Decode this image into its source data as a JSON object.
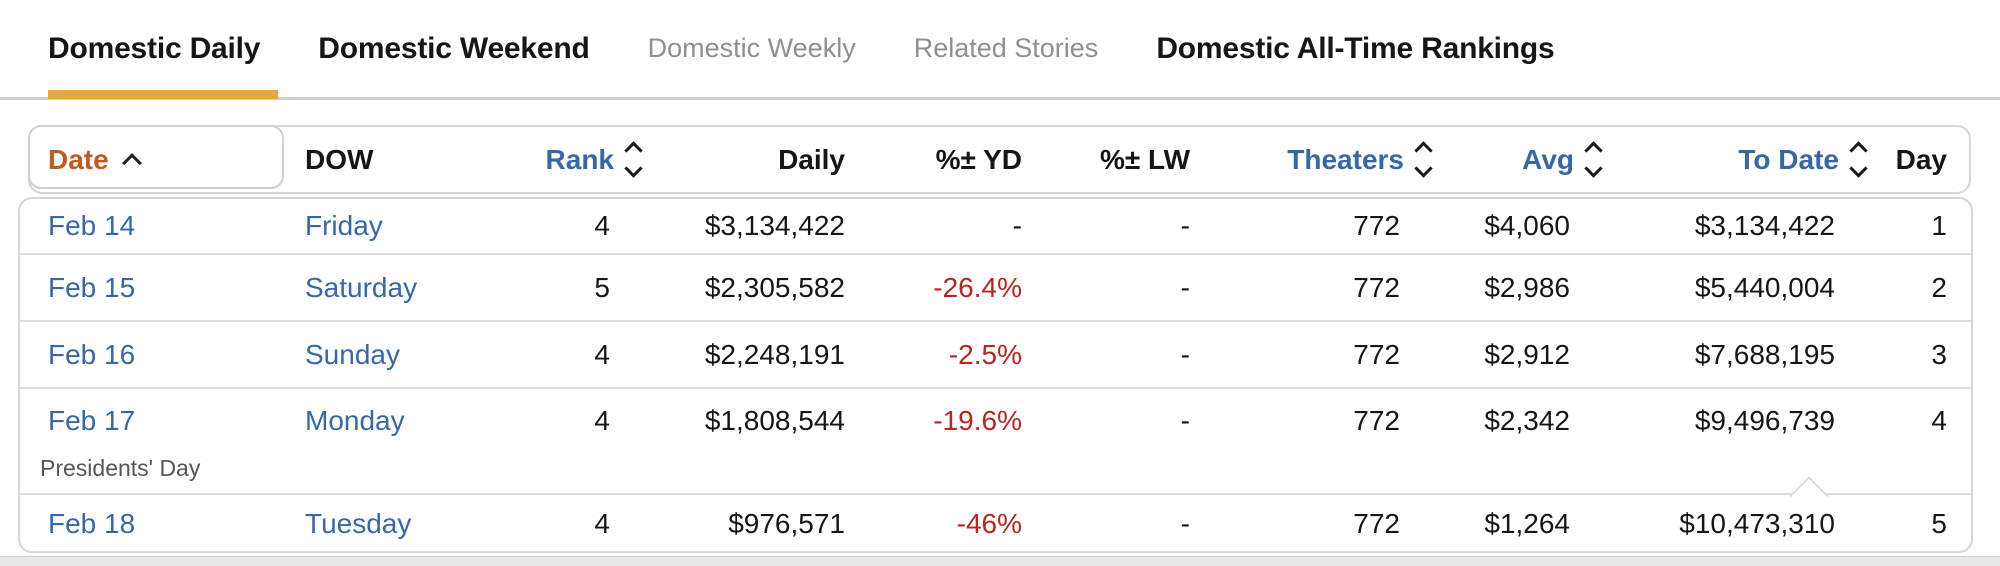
{
  "tabs": [
    {
      "label": "Domestic Daily",
      "state": "active"
    },
    {
      "label": "Domestic Weekend",
      "state": "default"
    },
    {
      "label": "Domestic Weekly",
      "state": "muted"
    },
    {
      "label": "Related Stories",
      "state": "muted"
    },
    {
      "label": "Domestic All-Time Rankings",
      "state": "default"
    }
  ],
  "active_tab": "Domestic Daily",
  "table": {
    "columns": [
      {
        "label": "Date",
        "sortable": true,
        "sorted": "ascending"
      },
      {
        "label": "DOW",
        "sortable": false
      },
      {
        "label": "Rank",
        "sortable": true
      },
      {
        "label": "Daily",
        "sortable": false
      },
      {
        "label": "%± YD",
        "sortable": false
      },
      {
        "label": "%± LW",
        "sortable": false
      },
      {
        "label": "Theaters",
        "sortable": true
      },
      {
        "label": "Avg",
        "sortable": true
      },
      {
        "label": "To Date",
        "sortable": true
      },
      {
        "label": "Day",
        "sortable": false
      }
    ],
    "rows": [
      {
        "date": "Feb 14",
        "dow": "Friday",
        "rank": "4",
        "daily": "$3,134,422",
        "yd": "-",
        "lw": "-",
        "theaters": "772",
        "avg": "$4,060",
        "to_date": "$3,134,422",
        "day": "1",
        "note": ""
      },
      {
        "date": "Feb 15",
        "dow": "Saturday",
        "rank": "5",
        "daily": "$2,305,582",
        "yd": "-26.4%",
        "lw": "-",
        "theaters": "772",
        "avg": "$2,986",
        "to_date": "$5,440,004",
        "day": "2",
        "note": ""
      },
      {
        "date": "Feb 16",
        "dow": "Sunday",
        "rank": "4",
        "daily": "$2,248,191",
        "yd": "-2.5%",
        "lw": "-",
        "theaters": "772",
        "avg": "$2,912",
        "to_date": "$7,688,195",
        "day": "3",
        "note": ""
      },
      {
        "date": "Feb 17",
        "dow": "Monday",
        "rank": "4",
        "daily": "$1,808,544",
        "yd": "-19.6%",
        "lw": "-",
        "theaters": "772",
        "avg": "$2,342",
        "to_date": "$9,496,739",
        "day": "4",
        "note": "Presidents' Day"
      },
      {
        "date": "Feb 18",
        "dow": "Tuesday",
        "rank": "4",
        "daily": "$976,571",
        "yd": "-46%",
        "lw": "-",
        "theaters": "772",
        "avg": "$1,264",
        "to_date": "$10,473,310",
        "day": "5",
        "note": ""
      }
    ]
  },
  "colors": {
    "accent_underline": "#eca43c",
    "sorted_column": "#bf5b20",
    "link_blue": "#3768a6",
    "negative_red": "#b9251c",
    "muted_tab": "#8f8f8f",
    "border_gray": "#d6d6d6"
  }
}
